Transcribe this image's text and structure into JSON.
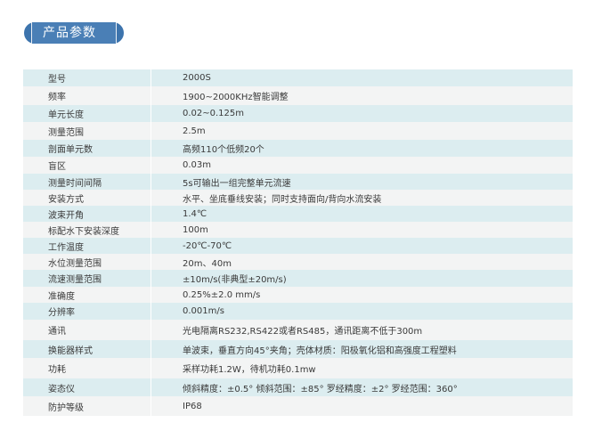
{
  "title": "产品参数",
  "colors": {
    "badge": "#4a7fb6",
    "row_alt": "#dcedf0",
    "row": "#f3f4f4"
  },
  "rows": [
    {
      "label": "型号",
      "value": "2000S"
    },
    {
      "label": "频率",
      "value": "1900~2000KHz智能调整"
    },
    {
      "label": "单元长度",
      "value": "0.02~0.125m"
    },
    {
      "label": "测量范围",
      "value": "2.5m"
    },
    {
      "label": "剖面单元数",
      "value": "高频110个低频20个"
    },
    {
      "label": "盲区",
      "value": "0.03m"
    },
    {
      "label": "测量时间间隔",
      "value": "5s可输出一组完整单元流速"
    },
    {
      "label": "安装方式",
      "value": "水平、坐底垂线安装；同时支持面向/背向水流安装"
    },
    {
      "label": "波束开角",
      "value": "1.4℃"
    },
    {
      "label": "标配水下安装深度",
      "value": "100m"
    },
    {
      "label": "工作温度",
      "value": "-20℃-70℃"
    },
    {
      "label": "水位测量范围",
      "value": "20m、40m"
    },
    {
      "label": "流速测量范围",
      "value": "±10m/s(非典型±20m/s)"
    },
    {
      "label": "准确度",
      "value": "0.25%±2.0 mm/s"
    },
    {
      "label": "分辨率",
      "value": "0.001m/s"
    },
    {
      "label": "通讯",
      "value": "光电隔离RS232,RS422或者RS485，通讯距离不低于300m"
    },
    {
      "label": "换能器样式",
      "value": "单波束，垂直方向45°夹角；壳体材质：阳极氧化铝和高强度工程塑料"
    },
    {
      "label": "功耗",
      "value": "采样功耗1.2W，待机功耗0.1mw"
    },
    {
      "label": "姿态仪",
      "value": "倾斜精度：±0.5° 倾斜范围：±85° 罗经精度：±2° 罗经范围：360°"
    },
    {
      "label": "防护等级",
      "value": "IP68"
    }
  ]
}
